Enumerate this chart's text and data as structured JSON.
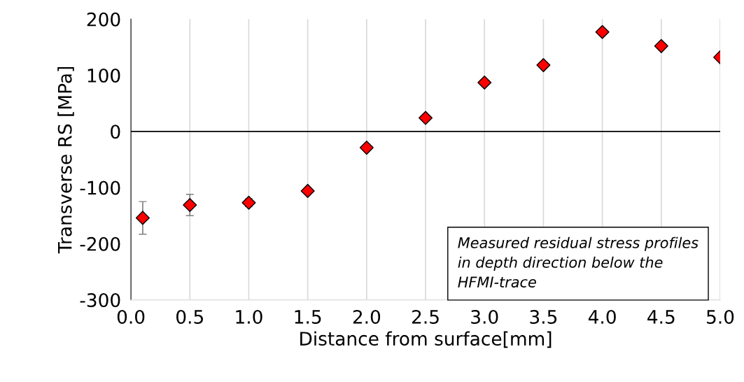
{
  "chart_data": {
    "type": "scatter",
    "xlabel": "Distance from surface[mm]",
    "ylabel": "Transverse RS [MPa]",
    "x": [
      0.1,
      0.5,
      1.0,
      1.5,
      2.0,
      2.5,
      3.0,
      3.5,
      4.0,
      4.5,
      5.0
    ],
    "series": [
      {
        "color": "#ff0000",
        "values": [
          -154,
          -131,
          -127,
          -106,
          -29,
          24,
          87,
          118,
          177,
          152,
          132
        ],
        "errors": [
          29,
          19,
          7,
          null,
          null,
          null,
          null,
          null,
          null,
          null,
          null
        ]
      }
    ],
    "marker": "diamond",
    "grid": "x",
    "xlim": [
      0,
      5
    ],
    "xticks": [
      {
        "value": 0,
        "label": "0.0"
      },
      {
        "value": 0.5,
        "label": "0.5"
      },
      {
        "value": 1,
        "label": "1.0"
      },
      {
        "value": 1.5,
        "label": "1.5"
      },
      {
        "value": 2,
        "label": "2.0"
      },
      {
        "value": 2.5,
        "label": "2.5"
      },
      {
        "value": 3,
        "label": "3.0"
      },
      {
        "value": 3.5,
        "label": "3.5"
      },
      {
        "value": 4,
        "label": "4.0"
      },
      {
        "value": 4.5,
        "label": "4.5"
      },
      {
        "value": 5,
        "label": "5.0"
      }
    ],
    "ylim": [
      -300,
      200
    ],
    "yticks": [
      -300,
      -200,
      -100,
      0,
      100,
      200
    ],
    "ref_lines": [
      {
        "axis": "y",
        "value": 0,
        "color": "#000000"
      }
    ],
    "annotations": [
      "Measured residual stress profiles in depth direction below the HFMI-trace"
    ]
  }
}
